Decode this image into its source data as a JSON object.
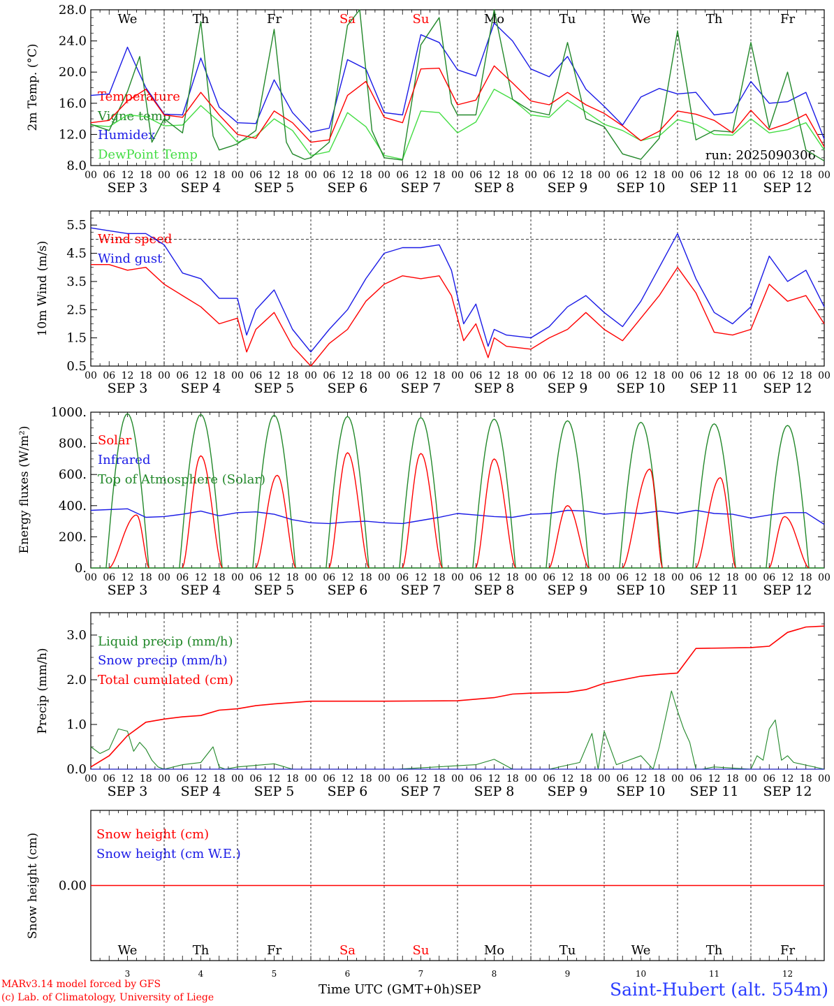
{
  "colors": {
    "red": "#ff0000",
    "dkgreen": "#22882a",
    "blue": "#1a1ae6",
    "ltgreen": "#44dd44",
    "weekend": "#ff0000",
    "text": "#000000"
  },
  "days": {
    "weekday_labels": [
      "We",
      "Th",
      "Fr",
      "Sa",
      "Su",
      "Mo",
      "Tu",
      "We",
      "Th",
      "Fr"
    ],
    "weekend_flags": [
      false,
      false,
      false,
      true,
      true,
      false,
      false,
      false,
      false,
      false
    ],
    "date_labels": [
      "SEP  3",
      "SEP  4",
      "SEP  5",
      "SEP  6",
      "SEP  7",
      "SEP  8",
      "SEP  9",
      "SEP 10",
      "SEP 11",
      "SEP 12"
    ],
    "day_numbers": [
      "3",
      "4",
      "5",
      "6",
      "7",
      "8",
      "9",
      "10",
      "11",
      "12"
    ],
    "hour_labels": [
      "00",
      "06",
      "12",
      "18"
    ],
    "final_hour_label": "00"
  },
  "footer": {
    "model_line1": "MARv3.14 model forced by GFS",
    "model_line2": "(c) Lab. of Climatology, University of Liege",
    "x_axis_title": "Time UTC (GMT+0h)",
    "month": "SEP",
    "station": "Saint-Hubert (alt. 554m)"
  },
  "chart_data": [
    {
      "type": "line",
      "ylabel": "2m Temp. (°C)",
      "ylim": [
        8,
        28
      ],
      "yticks": [
        "8.0",
        "12.0",
        "16.0",
        "20.0",
        "24.0",
        "28.0"
      ],
      "run_label": "run: 2025090306",
      "x_unit": "hours since SEP 3 00 UTC",
      "series": [
        {
          "name": "Temperature",
          "color": "red",
          "x": [
            0,
            6,
            12,
            18,
            24,
            30,
            36,
            42,
            48,
            54,
            60,
            66,
            72,
            78,
            84,
            90,
            96,
            102,
            108,
            114,
            120,
            126,
            132,
            138,
            144,
            150,
            156,
            162,
            168,
            174,
            180,
            186,
            192,
            198,
            204,
            210,
            216,
            222,
            228,
            234,
            240
          ],
          "y": [
            13.5,
            13.8,
            16.3,
            17.8,
            14.5,
            14.2,
            17.4,
            14.5,
            12.0,
            11.5,
            15.0,
            13.5,
            11.0,
            11.3,
            17.0,
            18.8,
            14.2,
            13.5,
            20.4,
            20.5,
            15.8,
            16.4,
            20.8,
            18.6,
            16.3,
            15.8,
            17.4,
            15.8,
            14.7,
            13.1,
            11.2,
            12.4,
            15.0,
            14.6,
            13.8,
            12.2,
            15.1,
            12.6,
            13.4,
            14.6,
            10.4
          ]
        },
        {
          "name": "Vigne temp",
          "color": "dkgreen",
          "x": [
            0,
            6,
            12,
            16,
            20,
            24,
            30,
            36,
            40,
            42,
            46,
            48,
            54,
            60,
            64,
            66,
            70,
            72,
            78,
            84,
            88,
            92,
            96,
            102,
            108,
            114,
            118,
            120,
            126,
            132,
            138,
            144,
            150,
            156,
            162,
            168,
            174,
            180,
            186,
            192,
            198,
            204,
            210,
            216,
            222,
            228,
            234,
            240
          ],
          "y": [
            13.3,
            12.5,
            17.5,
            22.0,
            11.0,
            14.0,
            12.2,
            26.5,
            11.8,
            10.0,
            10.5,
            10.8,
            12.5,
            25.5,
            11.0,
            9.5,
            8.8,
            9.0,
            11.0,
            26.0,
            28.0,
            12.5,
            9.0,
            8.7,
            23.5,
            27.0,
            16.0,
            14.5,
            14.5,
            28.0,
            16.5,
            15.0,
            14.5,
            23.8,
            14.0,
            13.0,
            9.5,
            8.8,
            11.5,
            25.3,
            11.3,
            12.5,
            12.3,
            23.8,
            12.8,
            20.0,
            10.0,
            8.6
          ]
        },
        {
          "name": "Humidex",
          "color": "blue",
          "x": [
            0,
            6,
            12,
            18,
            24,
            30,
            36,
            42,
            48,
            54,
            60,
            66,
            72,
            78,
            84,
            90,
            96,
            102,
            108,
            114,
            120,
            126,
            132,
            138,
            144,
            150,
            156,
            162,
            168,
            174,
            180,
            186,
            192,
            198,
            204,
            210,
            216,
            222,
            228,
            234,
            240
          ],
          "y": [
            17.0,
            17.2,
            23.2,
            18.0,
            14.6,
            14.5,
            21.8,
            15.5,
            13.5,
            13.4,
            19.0,
            14.8,
            12.3,
            12.8,
            21.6,
            20.4,
            14.8,
            14.5,
            24.8,
            23.8,
            20.3,
            19.5,
            26.3,
            24.0,
            20.4,
            19.4,
            22.0,
            17.8,
            15.6,
            13.2,
            16.8,
            17.9,
            17.2,
            17.4,
            14.5,
            14.8,
            18.8,
            16.0,
            16.2,
            17.4,
            11.4
          ]
        },
        {
          "name": "DewPoint Temp",
          "color": "ltgreen",
          "x": [
            0,
            6,
            12,
            18,
            24,
            30,
            36,
            42,
            48,
            54,
            60,
            66,
            72,
            78,
            84,
            90,
            96,
            102,
            108,
            114,
            120,
            126,
            132,
            138,
            144,
            150,
            156,
            162,
            168,
            174,
            180,
            186,
            192,
            198,
            204,
            210,
            216,
            222,
            228,
            234,
            240
          ],
          "y": [
            13.2,
            13.0,
            14.5,
            14.3,
            13.1,
            13.2,
            15.7,
            13.6,
            11.0,
            11.8,
            14.0,
            12.5,
            9.3,
            9.8,
            14.8,
            13.0,
            9.3,
            8.8,
            15.0,
            14.8,
            12.2,
            13.6,
            17.8,
            16.5,
            14.5,
            14.2,
            16.4,
            14.9,
            13.3,
            12.5,
            11.2,
            11.8,
            13.9,
            13.3,
            12.0,
            11.9,
            14.0,
            12.2,
            12.6,
            13.5,
            10.0
          ]
        }
      ]
    },
    {
      "type": "line",
      "ylabel": "10m Wind (m/s)",
      "ylim": [
        0.5,
        6.0
      ],
      "yticks": [
        "0.5",
        "1.5",
        "2.5",
        "3.5",
        "4.5",
        "5.5"
      ],
      "ref_line": 5.0,
      "x_unit": "hours since SEP 3 00 UTC",
      "series": [
        {
          "name": "Wind speed",
          "color": "red",
          "x": [
            0,
            6,
            12,
            18,
            24,
            30,
            36,
            42,
            48,
            51,
            54,
            60,
            66,
            72,
            78,
            84,
            90,
            96,
            102,
            108,
            114,
            118,
            122,
            126,
            130,
            132,
            136,
            144,
            150,
            156,
            162,
            168,
            174,
            180,
            186,
            192,
            198,
            204,
            210,
            216,
            222,
            228,
            234,
            240
          ],
          "y": [
            4.1,
            4.1,
            3.9,
            4.0,
            3.4,
            3.0,
            2.6,
            2.0,
            2.2,
            1.0,
            1.8,
            2.4,
            1.2,
            0.5,
            1.3,
            1.8,
            2.8,
            3.4,
            3.7,
            3.6,
            3.7,
            3.0,
            1.4,
            2.0,
            0.8,
            1.5,
            1.2,
            1.1,
            1.5,
            1.8,
            2.4,
            1.8,
            1.4,
            2.2,
            3.0,
            4.0,
            3.1,
            1.7,
            1.6,
            1.8,
            3.4,
            2.8,
            3.0,
            2.0
          ]
        },
        {
          "name": "Wind gust",
          "color": "blue",
          "x": [
            0,
            6,
            12,
            18,
            24,
            30,
            36,
            42,
            48,
            51,
            54,
            60,
            66,
            72,
            78,
            84,
            90,
            96,
            102,
            108,
            114,
            118,
            122,
            126,
            130,
            132,
            136,
            144,
            150,
            156,
            162,
            168,
            174,
            180,
            186,
            192,
            198,
            204,
            210,
            216,
            222,
            228,
            234,
            240
          ],
          "y": [
            5.4,
            5.3,
            5.2,
            5.2,
            4.8,
            3.8,
            3.6,
            2.9,
            2.9,
            1.6,
            2.5,
            3.2,
            1.8,
            1.0,
            1.8,
            2.5,
            3.6,
            4.5,
            4.7,
            4.7,
            4.8,
            3.9,
            2.0,
            2.7,
            1.2,
            1.8,
            1.6,
            1.5,
            1.9,
            2.6,
            3.0,
            2.4,
            1.9,
            2.8,
            4.0,
            5.2,
            3.6,
            2.4,
            2.0,
            2.6,
            4.4,
            3.5,
            3.9,
            2.6
          ]
        }
      ]
    },
    {
      "type": "line",
      "ylabel": "Energy fluxes (W/m²)",
      "ylim": [
        0,
        1000
      ],
      "yticks": [
        "0.",
        "200.",
        "400.",
        "600.",
        "800.",
        "1000."
      ],
      "x_unit": "hours since SEP 3 00 UTC",
      "series": [
        {
          "name": "Solar",
          "color": "red",
          "daily_peaks": [
            340,
            720,
            595,
            740,
            735,
            700,
            400,
            635,
            580,
            330
          ],
          "peak_hour": [
            15,
            12,
            13,
            12,
            12,
            12,
            12,
            15,
            14,
            11
          ]
        },
        {
          "name": "Infrared",
          "color": "blue",
          "x": [
            0,
            12,
            18,
            24,
            30,
            36,
            42,
            48,
            54,
            60,
            66,
            72,
            78,
            84,
            90,
            96,
            102,
            108,
            114,
            120,
            126,
            132,
            138,
            144,
            150,
            156,
            162,
            168,
            174,
            180,
            186,
            192,
            198,
            204,
            210,
            216,
            222,
            228,
            234,
            240
          ],
          "y": [
            370,
            380,
            325,
            330,
            345,
            365,
            335,
            355,
            360,
            345,
            310,
            290,
            285,
            295,
            300,
            290,
            285,
            305,
            325,
            350,
            340,
            330,
            325,
            345,
            350,
            370,
            365,
            345,
            355,
            350,
            365,
            350,
            370,
            350,
            345,
            320,
            340,
            355,
            355,
            280
          ]
        },
        {
          "name": "Top of Atmosphere (Solar)",
          "color": "dkgreen",
          "daily_peaks": [
            990,
            985,
            980,
            972,
            965,
            955,
            945,
            935,
            925,
            915
          ],
          "sunrise": 5,
          "sunset": 19
        }
      ]
    },
    {
      "type": "line",
      "ylabel": "Precip (mm/h)",
      "ylim": [
        0,
        3.5
      ],
      "yticks": [
        "0.0",
        "1.0",
        "2.0",
        "3.0"
      ],
      "x_unit": "hours since SEP 3 00 UTC",
      "series": [
        {
          "name": "Liquid precip (mm/h)",
          "color": "dkgreen",
          "x": [
            0,
            3,
            6,
            9,
            12,
            14,
            16,
            18,
            20,
            22,
            24,
            30,
            36,
            40,
            42,
            44,
            48,
            60,
            66,
            72,
            100,
            126,
            132,
            138,
            144,
            150,
            160,
            164,
            166,
            168,
            172,
            180,
            184,
            186,
            190,
            192,
            194,
            196,
            198,
            200,
            204,
            216,
            218,
            220,
            222,
            224,
            226,
            228,
            230,
            240
          ],
          "y": [
            0.5,
            0.35,
            0.45,
            0.9,
            0.85,
            0.4,
            0.6,
            0.45,
            0.2,
            0.05,
            0.0,
            0.1,
            0.15,
            0.5,
            0.05,
            0.0,
            0.05,
            0.12,
            0.0,
            0.0,
            0.0,
            0.1,
            0.22,
            0.0,
            0.0,
            0.0,
            0.15,
            0.8,
            0.0,
            0.85,
            0.1,
            0.3,
            0.0,
            0.5,
            1.75,
            1.3,
            0.9,
            0.6,
            0.0,
            0.0,
            0.05,
            0.0,
            0.3,
            0.2,
            0.9,
            1.1,
            0.2,
            0.3,
            0.15,
            0.0
          ]
        },
        {
          "name": "Snow precip (mm/h)",
          "color": "blue",
          "y_all": 0
        },
        {
          "name": "Total cumulated (cm)",
          "color": "red",
          "x": [
            0,
            6,
            12,
            18,
            24,
            30,
            36,
            42,
            48,
            54,
            60,
            72,
            96,
            120,
            132,
            138,
            144,
            156,
            162,
            168,
            180,
            186,
            192,
            198,
            216,
            222,
            228,
            234,
            240
          ],
          "y": [
            0.05,
            0.3,
            0.75,
            1.05,
            1.12,
            1.17,
            1.2,
            1.32,
            1.35,
            1.42,
            1.46,
            1.52,
            1.52,
            1.53,
            1.6,
            1.68,
            1.7,
            1.72,
            1.78,
            1.92,
            2.08,
            2.12,
            2.15,
            2.7,
            2.72,
            2.75,
            3.06,
            3.18,
            3.2
          ]
        }
      ]
    },
    {
      "type": "line",
      "ylabel": "Snow height (cm)",
      "ylim": [
        -1,
        1
      ],
      "yticks": [
        "0.00"
      ],
      "series": [
        {
          "name": "Snow height (cm)",
          "color": "red",
          "y_all": 0
        },
        {
          "name": "Snow height (cm W.E.)",
          "color": "blue",
          "y_all": 0
        }
      ]
    }
  ]
}
